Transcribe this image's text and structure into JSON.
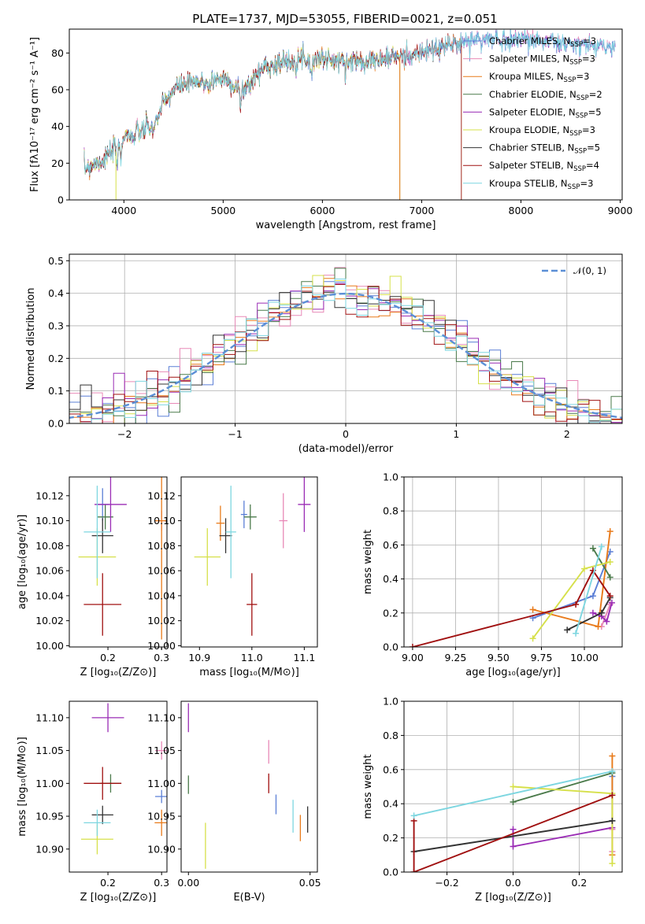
{
  "title": "PLATE=1737, MJD=53055, FIBERID=0021, z=0.051",
  "colors": [
    "#5b7fd6",
    "#e889b7",
    "#e87a1a",
    "#4a7a4a",
    "#9a2cb5",
    "#d6e04a",
    "#333333",
    "#a01010",
    "#7dd6e0"
  ],
  "chart_data": [
    {
      "type": "line",
      "name": "spectrum",
      "xlabel": "wavelength [Angstrom, rest frame]",
      "ylabel": "Flux [f$_\\lambda$10$^{-17}$ erg cm$^{-2}$ s$^{-1}$ A$^{-1}$]",
      "ylabel_display": "Flux [fλ10⁻¹⁷ erg cm⁻² s⁻¹ A⁻¹]",
      "xlim": [
        3450,
        9020
      ],
      "ylim": [
        0,
        93
      ],
      "xticks": [
        4000,
        5000,
        6000,
        7000,
        8000,
        9000
      ],
      "yticks": [
        0,
        20,
        40,
        60,
        80
      ],
      "legend_position": "right",
      "series": [
        {
          "name": "Chabrier MILES, N$_{SSP}$=3",
          "label_main": "Chabrier MILES, N",
          "label_sub": "SSP",
          "label_end": "=3"
        },
        {
          "name": "Salpeter MILES, N$_{SSP}$=3",
          "label_main": "Salpeter MILES, N",
          "label_sub": "SSP",
          "label_end": "=3"
        },
        {
          "name": "Kroupa MILES, N$_{SSP}$=3",
          "label_main": "Kroupa MILES, N",
          "label_sub": "SSP",
          "label_end": "=3"
        },
        {
          "name": "Chabrier ELODIE, N$_{SSP}$=2",
          "label_main": "Chabrier ELODIE, N",
          "label_sub": "SSP",
          "label_end": "=2"
        },
        {
          "name": "Salpeter ELODIE, N$_{SSP}$=5",
          "label_main": "Salpeter ELODIE, N",
          "label_sub": "SSP",
          "label_end": "=5"
        },
        {
          "name": "Kroupa ELODIE, N$_{SSP}$=3",
          "label_main": "Kroupa ELODIE, N",
          "label_sub": "SSP",
          "label_end": "=3"
        },
        {
          "name": "Chabrier STELIB, N$_{SSP}$=5",
          "label_main": "Chabrier STELIB, N",
          "label_sub": "SSP",
          "label_end": "=5"
        },
        {
          "name": "Salpeter STELIB, N$_{SSP}$=4",
          "label_main": "Salpeter STELIB, N",
          "label_sub": "SSP",
          "label_end": "=4"
        },
        {
          "name": "Kroupa STELIB, N$_{SSP}$=3",
          "label_main": "Kroupa STELIB, N",
          "label_sub": "SSP",
          "label_end": "=3"
        }
      ],
      "continuum": {
        "x": [
          3600,
          3700,
          3800,
          3900,
          4000,
          4100,
          4200,
          4300,
          4400,
          4500,
          4600,
          4800,
          5000,
          5100,
          5200,
          5300,
          5400,
          5600,
          5800,
          6000,
          6200,
          6400,
          6600,
          6800,
          7000,
          7200,
          7400,
          7600,
          7800,
          8000,
          8200,
          8400,
          8600,
          8800,
          8900
        ],
        "y": [
          17,
          20,
          22,
          27,
          35,
          36,
          38,
          41,
          52,
          60,
          63,
          64,
          66,
          63,
          60,
          66,
          72,
          75,
          77,
          77,
          75,
          76,
          77,
          78,
          80,
          83,
          86,
          88,
          87,
          88,
          87,
          85,
          84,
          84,
          83
        ]
      },
      "ends": {
        "Chabrier STELIB": 7400,
        "Salpeter STELIB": 7400,
        "Kroupa ELODIE": 6780,
        "Chabrier ELODIE": 6780,
        "Kroupa MILES": 7400
      }
    },
    {
      "type": "line",
      "name": "residual-histogram",
      "xlabel": "(data-model)/error",
      "ylabel": "Normed distribution",
      "xlim": [
        -2.5,
        2.5
      ],
      "ylim": [
        0,
        0.52
      ],
      "xticks": [
        -2,
        -1,
        0,
        1,
        2
      ],
      "xtick_labels": [
        "−2",
        "−1",
        "0",
        "1",
        "2"
      ],
      "yticks": [
        0.0,
        0.1,
        0.2,
        0.3,
        0.4,
        0.5
      ],
      "ytick_labels": [
        "0.0",
        "0.1",
        "0.2",
        "0.3",
        "0.4",
        "0.5"
      ],
      "grid": true,
      "legend": "𝒩(0, 1)",
      "legend_position": "top-right",
      "bin_width": 0.1
    },
    {
      "type": "scatter",
      "name": "age-vs-metallicity",
      "xlabel": "Z [log$_{10}$(Z/Z$_\\odot$)]",
      "xlabel_display": "Z [log₁₀(Z/Z⊙)]",
      "ylabel": "age  [log$_{10}$(age/yr)]",
      "ylabel_display": "age  [log₁₀(age/yr)]",
      "xlim": [
        0.128,
        0.31
      ],
      "ylim": [
        9.999,
        10.135
      ],
      "xticks": [
        0.2,
        0.3
      ],
      "xtick_labels": [
        "0.2",
        "0.3"
      ],
      "yticks": [
        10.0,
        10.02,
        10.04,
        10.06,
        10.08,
        10.1,
        10.12
      ],
      "ytick_labels": [
        "10.00",
        "10.02",
        "10.04",
        "10.06",
        "10.08",
        "10.10",
        "10.12"
      ],
      "points": [
        {
          "x": 0.19,
          "y": 10.113,
          "ex": 0.012,
          "ey": 0.013,
          "c": 0
        },
        {
          "x": 0.3,
          "y": 10.1,
          "ex": 0.013,
          "ey": 0.008,
          "c": 1
        },
        {
          "x": 0.3,
          "y": 10.1,
          "ex": 0.012,
          "ey": 0.095,
          "c": 2
        },
        {
          "x": 0.195,
          "y": 10.103,
          "ex": 0.015,
          "ey": 0.01,
          "c": 3
        },
        {
          "x": 0.205,
          "y": 10.113,
          "ex": 0.03,
          "ey": 0.022,
          "c": 4
        },
        {
          "x": 0.18,
          "y": 10.071,
          "ex": 0.035,
          "ey": 0.023,
          "c": 5
        },
        {
          "x": 0.19,
          "y": 10.088,
          "ex": 0.02,
          "ey": 0.014,
          "c": 6
        },
        {
          "x": 0.19,
          "y": 10.033,
          "ex": 0.035,
          "ey": 0.025,
          "c": 7
        },
        {
          "x": 0.18,
          "y": 10.091,
          "ex": 0.025,
          "ey": 0.037,
          "c": 8
        }
      ]
    },
    {
      "type": "scatter",
      "name": "age-vs-mass",
      "xlabel": "mass [log$_{10}$(M/M$_\\odot$)]",
      "xlabel_display": "mass [log₁₀(M/M⊙)]",
      "xlim": [
        10.865,
        11.125
      ],
      "ylim": [
        9.999,
        10.135
      ],
      "xticks": [
        10.9,
        11.0,
        11.1
      ],
      "xtick_labels": [
        "10.9",
        "11.0",
        "11.1"
      ],
      "yticks": [
        10.0,
        10.02,
        10.04,
        10.06,
        10.08,
        10.1,
        10.12
      ],
      "ytick_labels": [
        "10.00",
        "10.02",
        "10.04",
        "10.06",
        "10.08",
        "10.10",
        "10.12"
      ],
      "points": [
        {
          "x": 10.985,
          "y": 10.105,
          "ex": 0.006,
          "ey": 0.011,
          "c": 0
        },
        {
          "x": 11.06,
          "y": 10.1,
          "ex": 0.008,
          "ey": 0.022,
          "c": 1
        },
        {
          "x": 10.94,
          "y": 10.098,
          "ex": 0.008,
          "ey": 0.014,
          "c": 2
        },
        {
          "x": 10.997,
          "y": 10.103,
          "ex": 0.012,
          "ey": 0.01,
          "c": 3
        },
        {
          "x": 11.1,
          "y": 10.113,
          "ex": 0.012,
          "ey": 0.022,
          "c": 4
        },
        {
          "x": 10.915,
          "y": 10.071,
          "ex": 0.025,
          "ey": 0.023,
          "c": 5
        },
        {
          "x": 10.95,
          "y": 10.088,
          "ex": 0.012,
          "ey": 0.014,
          "c": 6
        },
        {
          "x": 11.0,
          "y": 10.033,
          "ex": 0.01,
          "ey": 0.025,
          "c": 7
        },
        {
          "x": 10.96,
          "y": 10.091,
          "ex": 0.01,
          "ey": 0.037,
          "c": 8
        }
      ]
    },
    {
      "type": "line",
      "name": "mass-weight-vs-age",
      "xlabel": "age  [log$_{10}$(age/yr)]",
      "xlabel_display": "age  [log₁₀(age/yr)]",
      "ylabel": "mass weight",
      "xlim": [
        8.95,
        10.22
      ],
      "ylim": [
        0,
        1.0
      ],
      "xticks": [
        9.0,
        9.25,
        9.5,
        9.75,
        10.0
      ],
      "xtick_labels": [
        "9.00",
        "9.25",
        "9.50",
        "9.75",
        "10.00"
      ],
      "yticks": [
        0.0,
        0.2,
        0.4,
        0.6,
        0.8,
        1.0
      ],
      "ytick_labels": [
        "0.0",
        "0.2",
        "0.4",
        "0.6",
        "0.8",
        "1.0"
      ],
      "grid": true,
      "series": [
        {
          "c": 0,
          "x": [
            9.7,
            10.05,
            10.15
          ],
          "y": [
            0.17,
            0.3,
            0.56
          ]
        },
        {
          "c": 1,
          "x": [
            10.1,
            10.15
          ],
          "y": [
            0.12,
            0.25
          ]
        },
        {
          "c": 2,
          "x": [
            9.7,
            10.08,
            10.15
          ],
          "y": [
            0.22,
            0.12,
            0.68
          ]
        },
        {
          "c": 3,
          "x": [
            10.05,
            10.15
          ],
          "y": [
            0.58,
            0.41
          ]
        },
        {
          "c": 4,
          "x": [
            10.05,
            10.1,
            10.13,
            10.16
          ],
          "y": [
            0.2,
            0.18,
            0.15,
            0.26
          ]
        },
        {
          "c": 5,
          "x": [
            9.7,
            10.0,
            10.15
          ],
          "y": [
            0.05,
            0.46,
            0.5
          ]
        },
        {
          "c": 6,
          "x": [
            9.9,
            10.1,
            10.15
          ],
          "y": [
            0.1,
            0.2,
            0.29
          ]
        },
        {
          "c": 7,
          "x": [
            9.0,
            9.95,
            10.05,
            10.15
          ],
          "y": [
            0.0,
            0.25,
            0.45,
            0.3
          ]
        },
        {
          "c": 8,
          "x": [
            9.95,
            10.1
          ],
          "y": [
            0.08,
            0.59
          ]
        }
      ]
    },
    {
      "type": "scatter",
      "name": "mass-vs-metallicity",
      "xlabel": "Z [log$_{10}$(Z/Z$_\\odot$)]",
      "xlabel_display": "Z [log₁₀(Z/Z⊙)]",
      "ylabel": "mass [log$_{10}$(M/M$_\\odot$)]",
      "ylabel_display": "mass [log₁₀(M/M⊙)]",
      "xlim": [
        0.128,
        0.31
      ],
      "ylim": [
        10.865,
        11.125
      ],
      "xticks": [
        0.2,
        0.3
      ],
      "xtick_labels": [
        "0.2",
        "0.3"
      ],
      "yticks": [
        10.9,
        10.95,
        11.0,
        11.05,
        11.1
      ],
      "ytick_labels": [
        "10.90",
        "10.95",
        "11.00",
        "11.05",
        "11.10"
      ],
      "points": [
        {
          "x": 0.3,
          "y": 10.98,
          "ex": 0.012,
          "ey": 0.01,
          "c": 0
        },
        {
          "x": 0.3,
          "y": 11.05,
          "ex": 0.012,
          "ey": 0.014,
          "c": 1
        },
        {
          "x": 0.3,
          "y": 10.94,
          "ex": 0.013,
          "ey": 0.02,
          "c": 2
        },
        {
          "x": 0.205,
          "y": 11.0,
          "ex": 0.02,
          "ey": 0.014,
          "c": 3
        },
        {
          "x": 0.2,
          "y": 11.1,
          "ex": 0.03,
          "ey": 0.022,
          "c": 4
        },
        {
          "x": 0.18,
          "y": 10.915,
          "ex": 0.03,
          "ey": 0.023,
          "c": 5
        },
        {
          "x": 0.19,
          "y": 10.952,
          "ex": 0.02,
          "ey": 0.014,
          "c": 6
        },
        {
          "x": 0.19,
          "y": 11.0,
          "ex": 0.035,
          "ey": 0.025,
          "c": 7
        },
        {
          "x": 0.18,
          "y": 10.94,
          "ex": 0.025,
          "ey": 0.02,
          "c": 8
        }
      ]
    },
    {
      "type": "scatter",
      "name": "mass-vs-ebv",
      "xlabel": "E(B-V)",
      "xlim": [
        -0.003,
        0.053
      ],
      "ylim": [
        10.865,
        11.125
      ],
      "xticks": [
        0.0,
        0.05
      ],
      "xtick_labels": [
        "0.00",
        "0.05"
      ],
      "yticks": [
        10.9,
        10.95,
        11.0,
        11.05,
        11.1
      ],
      "ytick_labels": [
        "10.90",
        "10.95",
        "11.00",
        "11.05",
        "11.10"
      ],
      "points": [
        {
          "x": 0.036,
          "y": 10.968,
          "ex": 0,
          "ey": 0.015,
          "c": 0
        },
        {
          "x": 0.033,
          "y": 11.048,
          "ex": 0,
          "ey": 0.018,
          "c": 1
        },
        {
          "x": 0.046,
          "y": 10.932,
          "ex": 0,
          "ey": 0.02,
          "c": 2
        },
        {
          "x": 0.0,
          "y": 10.998,
          "ex": 0,
          "ey": 0.014,
          "c": 3
        },
        {
          "x": 0.0,
          "y": 11.1,
          "ex": 0,
          "ey": 0.022,
          "c": 4
        },
        {
          "x": 0.007,
          "y": 10.905,
          "ex": 0,
          "ey": 0.035,
          "c": 5
        },
        {
          "x": 0.049,
          "y": 10.945,
          "ex": 0,
          "ey": 0.02,
          "c": 6
        },
        {
          "x": 0.033,
          "y": 11.0,
          "ex": 0,
          "ey": 0.015,
          "c": 7
        },
        {
          "x": 0.043,
          "y": 10.95,
          "ex": 0,
          "ey": 0.025,
          "c": 8
        }
      ]
    },
    {
      "type": "line",
      "name": "mass-weight-vs-metallicity",
      "xlabel": "Z [log$_{10}$(Z/Z$_\\odot$)]",
      "xlabel_display": "Z [log₁₀(Z/Z⊙)]",
      "ylabel": "mass weight",
      "xlim": [
        -0.33,
        0.33
      ],
      "ylim": [
        0,
        1.0
      ],
      "xticks": [
        -0.2,
        0.0,
        0.2
      ],
      "xtick_labels": [
        "−0.2",
        "0.0",
        "0.2"
      ],
      "yticks": [
        0.0,
        0.2,
        0.4,
        0.6,
        0.8,
        1.0
      ],
      "ytick_labels": [
        "0.0",
        "0.2",
        "0.4",
        "0.6",
        "0.8",
        "1.0"
      ],
      "grid": true,
      "series": [
        {
          "c": 0,
          "x": [
            0.3,
            0.3
          ],
          "y": [
            0.3,
            0.56
          ]
        },
        {
          "c": 1,
          "x": [
            0.3,
            0.3
          ],
          "y": [
            0.12,
            0.25
          ]
        },
        {
          "c": 2,
          "x": [
            0.3,
            0.3
          ],
          "y": [
            0.1,
            0.68
          ]
        },
        {
          "c": 3,
          "x": [
            0.0,
            0.3
          ],
          "y": [
            0.41,
            0.58
          ]
        },
        {
          "c": 4,
          "x": [
            0.0,
            0.0,
            0.3
          ],
          "y": [
            0.25,
            0.15,
            0.26
          ]
        },
        {
          "c": 5,
          "x": [
            0.0,
            0.3,
            0.3
          ],
          "y": [
            0.5,
            0.46,
            0.05
          ]
        },
        {
          "c": 6,
          "x": [
            -0.3,
            0.3
          ],
          "y": [
            0.12,
            0.3
          ]
        },
        {
          "c": 7,
          "x": [
            -0.3,
            -0.3,
            0.3
          ],
          "y": [
            0.3,
            0.0,
            0.45
          ]
        },
        {
          "c": 8,
          "x": [
            -0.3,
            0.3
          ],
          "y": [
            0.33,
            0.59
          ]
        }
      ]
    }
  ]
}
